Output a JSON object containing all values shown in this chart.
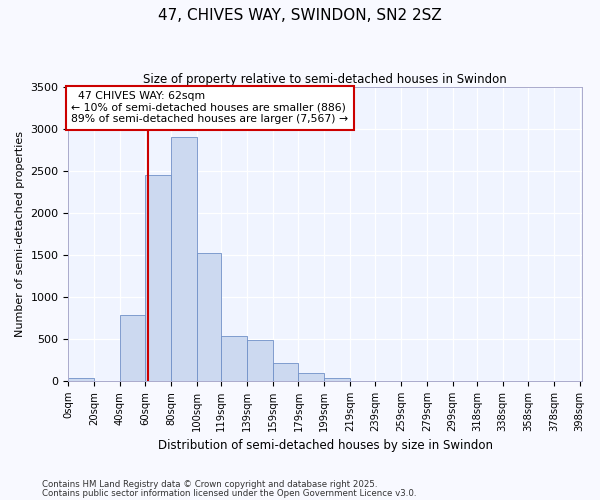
{
  "title1": "47, CHIVES WAY, SWINDON, SN2 2SZ",
  "title2": "Size of property relative to semi-detached houses in Swindon",
  "xlabel": "Distribution of semi-detached houses by size in Swindon",
  "ylabel": "Number of semi-detached properties",
  "property_label": "47 CHIVES WAY: 62sqm",
  "pct_smaller": 10,
  "pct_larger": 89,
  "n_smaller": 886,
  "n_larger": 7567,
  "categories": [
    "0sqm",
    "20sqm",
    "40sqm",
    "60sqm",
    "80sqm",
    "100sqm",
    "119sqm",
    "139sqm",
    "159sqm",
    "179sqm",
    "199sqm",
    "219sqm",
    "239sqm",
    "259sqm",
    "279sqm",
    "299sqm",
    "318sqm",
    "338sqm",
    "358sqm",
    "378sqm",
    "398sqm"
  ],
  "bin_edges": [
    0,
    20,
    40,
    60,
    80,
    100,
    119,
    139,
    159,
    179,
    199,
    219,
    239,
    259,
    279,
    299,
    318,
    338,
    358,
    378,
    398
  ],
  "bar_values": [
    40,
    0,
    780,
    2450,
    2900,
    1520,
    540,
    490,
    210,
    100,
    40,
    0,
    0,
    0,
    0,
    0,
    0,
    0,
    0,
    0
  ],
  "bar_color": "#ccd9f0",
  "bar_edge_color": "#7090c8",
  "vline_color": "#cc0000",
  "vline_x": 62,
  "annotation_box_color": "#cc0000",
  "ylim": [
    0,
    3500
  ],
  "yticks": [
    0,
    500,
    1000,
    1500,
    2000,
    2500,
    3000,
    3500
  ],
  "footer1": "Contains HM Land Registry data © Crown copyright and database right 2025.",
  "footer2": "Contains public sector information licensed under the Open Government Licence v3.0.",
  "background_color": "#f8f9ff",
  "plot_bg_color": "#f0f4ff"
}
